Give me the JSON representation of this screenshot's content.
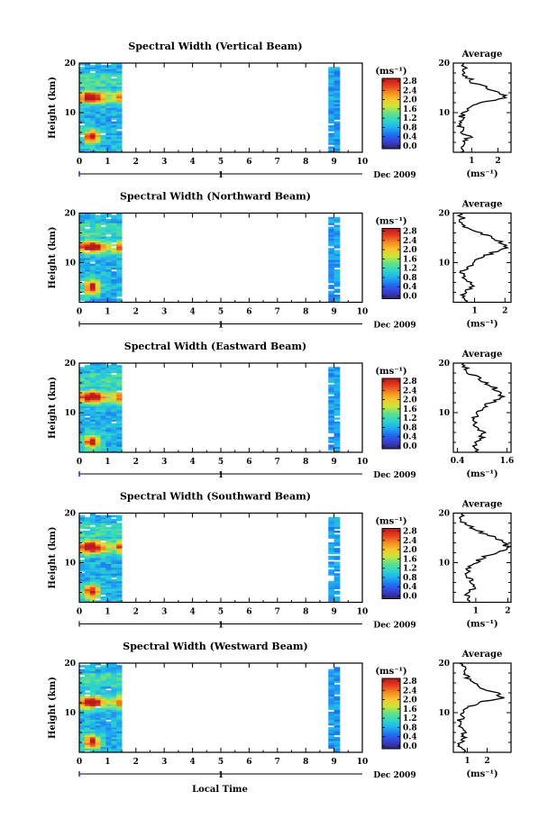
{
  "figure": {
    "x_axis_label": "Local Time",
    "date_label": "Dec 2009",
    "day_marker": "1",
    "colorbar_unit": "(ms⁻¹)",
    "average_unit": "(ms⁻¹)",
    "average_title": "Average",
    "y_axis_label": "Height (km)"
  },
  "colorscale": {
    "stops": [
      "#2c2a6e",
      "#3a3dd6",
      "#1f6ff0",
      "#1fb0f0",
      "#2fd6c8",
      "#5fe08a",
      "#c9e63a",
      "#f7c52c",
      "#f48a22",
      "#e63b1f",
      "#b81b1b"
    ],
    "tick_labels": [
      "0.0",
      "0.4",
      "0.8",
      "1.2",
      "1.6",
      "2.0",
      "2.4",
      "2.8"
    ],
    "max": 2.8
  },
  "chart_data": [
    {
      "type": "heatmap",
      "title": "Spectral Width (Vertical Beam)",
      "xlabel": "",
      "ylabel": "Height (km)",
      "xlim": [
        0,
        10
      ],
      "ylim": [
        2,
        20
      ],
      "x_ticks": [
        "0",
        "1",
        "2",
        "3",
        "4",
        "5",
        "6",
        "7",
        "8",
        "9",
        "10"
      ],
      "y_ticks": [
        "10",
        "20"
      ],
      "data_time_ranges": [
        [
          0,
          1.5
        ],
        [
          8.8,
          9.2
        ]
      ],
      "high_width_layers_km": [
        13,
        5
      ],
      "average_profile": {
        "xlim": [
          0.3,
          2.5
        ],
        "x_ticks": [
          "1",
          "2"
        ],
        "heights_km": [
          20,
          19,
          18,
          17,
          16,
          15,
          14,
          13,
          12,
          11,
          10,
          9,
          8,
          7,
          6,
          5,
          4,
          3,
          2
        ],
        "values": [
          0.6,
          0.7,
          0.6,
          0.9,
          1.0,
          1.6,
          2.1,
          2.3,
          1.3,
          0.8,
          0.7,
          0.6,
          0.5,
          0.6,
          0.7,
          0.9,
          0.7,
          0.5,
          0.6
        ]
      }
    },
    {
      "type": "heatmap",
      "title": "Spectral Width (Northward Beam)",
      "xlabel": "",
      "ylabel": "Height (km)",
      "xlim": [
        0,
        10
      ],
      "ylim": [
        2,
        20
      ],
      "x_ticks": [
        "0",
        "1",
        "2",
        "3",
        "4",
        "5",
        "6",
        "7",
        "8",
        "9",
        "10"
      ],
      "y_ticks": [
        "10",
        "20"
      ],
      "data_time_ranges": [
        [
          0,
          1.5
        ],
        [
          8.8,
          9.2
        ]
      ],
      "high_width_layers_km": [
        13,
        5
      ],
      "average_profile": {
        "xlim": [
          0.3,
          2.2
        ],
        "x_ticks": [
          "1",
          "2"
        ],
        "heights_km": [
          20,
          19,
          18,
          17,
          16,
          15,
          14,
          13,
          12,
          11,
          10,
          9,
          8,
          7,
          6,
          5,
          4,
          3,
          2
        ],
        "values": [
          0.5,
          0.6,
          0.5,
          0.8,
          1.2,
          1.6,
          1.9,
          2.1,
          1.6,
          1.2,
          1.0,
          0.7,
          0.6,
          0.7,
          0.8,
          0.9,
          0.7,
          0.6,
          0.7
        ]
      }
    },
    {
      "type": "heatmap",
      "title": "Spectral Width (Eastward Beam)",
      "xlabel": "",
      "ylabel": "Height (km)",
      "xlim": [
        0,
        10
      ],
      "ylim": [
        2,
        20
      ],
      "x_ticks": [
        "0",
        "1",
        "2",
        "3",
        "4",
        "5",
        "6",
        "7",
        "8",
        "9",
        "10"
      ],
      "y_ticks": [
        "10",
        "20"
      ],
      "data_time_ranges": [
        [
          0,
          1.5
        ],
        [
          8.8,
          9.2
        ]
      ],
      "high_width_layers_km": [
        13,
        4
      ],
      "average_profile": {
        "xlim": [
          0.3,
          1.7
        ],
        "x_ticks": [
          "0.4",
          "1.6"
        ],
        "heights_km": [
          20,
          19,
          18,
          17,
          16,
          15,
          14,
          13,
          12,
          11,
          10,
          9,
          8,
          7,
          6,
          5,
          4,
          3,
          2
        ],
        "values": [
          0.5,
          0.6,
          0.7,
          0.9,
          1.1,
          1.3,
          1.4,
          1.5,
          1.2,
          1.0,
          0.9,
          0.8,
          0.8,
          0.9,
          1.0,
          1.0,
          0.9,
          0.8,
          0.9
        ]
      }
    },
    {
      "type": "heatmap",
      "title": "Spectral Width (Southward Beam)",
      "xlabel": "",
      "ylabel": "Height (km)",
      "xlim": [
        0,
        10
      ],
      "ylim": [
        2,
        20
      ],
      "x_ticks": [
        "0",
        "1",
        "2",
        "3",
        "4",
        "5",
        "6",
        "7",
        "8",
        "9",
        "10"
      ],
      "y_ticks": [
        "10",
        "20"
      ],
      "data_time_ranges": [
        [
          0,
          1.5
        ],
        [
          8.8,
          9.2
        ]
      ],
      "high_width_layers_km": [
        13,
        4
      ],
      "average_profile": {
        "xlim": [
          0.3,
          2.1
        ],
        "x_ticks": [
          "1",
          "2"
        ],
        "heights_km": [
          20,
          19,
          18,
          17,
          16,
          15,
          14,
          13,
          12,
          11,
          10,
          9,
          8,
          7,
          6,
          5,
          4,
          3,
          2
        ],
        "values": [
          0.5,
          0.6,
          0.6,
          0.9,
          1.2,
          1.6,
          1.9,
          2.0,
          1.6,
          1.2,
          1.0,
          0.8,
          0.7,
          0.8,
          0.9,
          1.0,
          0.8,
          0.7,
          0.8
        ]
      }
    },
    {
      "type": "heatmap",
      "title": "Spectral Width (Westward Beam)",
      "xlabel": "Local Time",
      "ylabel": "Height (km)",
      "xlim": [
        0,
        10
      ],
      "ylim": [
        2,
        20
      ],
      "x_ticks": [
        "0",
        "1",
        "2",
        "3",
        "4",
        "5",
        "6",
        "7",
        "8",
        "9",
        "10"
      ],
      "y_ticks": [
        "10",
        "20"
      ],
      "data_time_ranges": [
        [
          0,
          1.5
        ],
        [
          8.8,
          9.2
        ]
      ],
      "high_width_layers_km": [
        12,
        4
      ],
      "average_profile": {
        "xlim": [
          0.3,
          3.2
        ],
        "x_ticks": [
          "1",
          "2"
        ],
        "heights_km": [
          20,
          19,
          18,
          17,
          16,
          15,
          14,
          13,
          12,
          11,
          10,
          9,
          8,
          7,
          6,
          5,
          4,
          3,
          2
        ],
        "values": [
          0.6,
          0.9,
          0.8,
          1.0,
          1.3,
          1.8,
          2.4,
          2.8,
          1.5,
          1.0,
          0.8,
          0.7,
          0.6,
          0.7,
          0.8,
          0.9,
          0.7,
          0.6,
          0.8
        ]
      }
    }
  ]
}
